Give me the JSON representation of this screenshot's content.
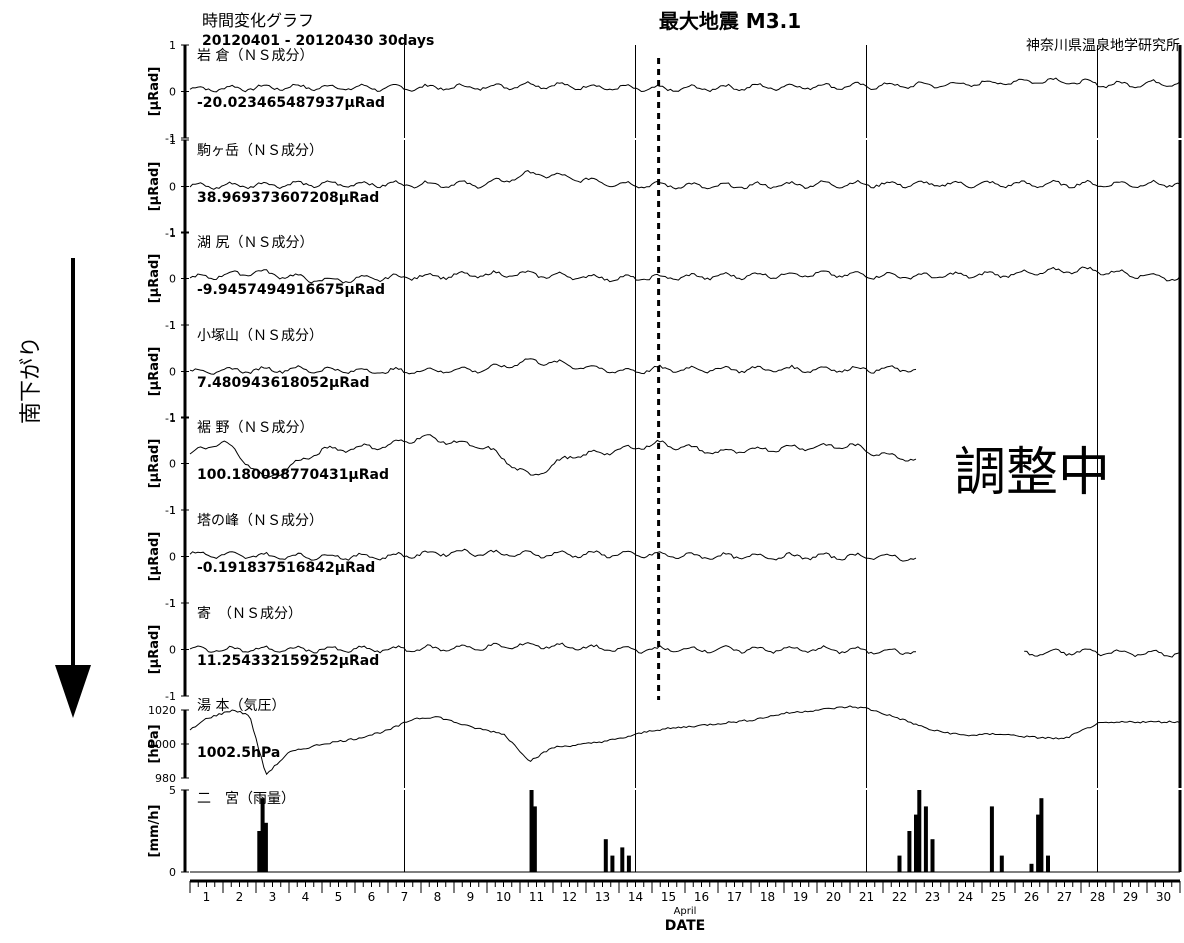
{
  "header": {
    "graph_title": "時間変化グラフ",
    "period": "20120401 - 20120430 30days",
    "max_quake": "最大地震 M3.1",
    "institute": "神奈川県温泉地学研究所"
  },
  "side_label": "南下がり",
  "overlay_text": "調整中",
  "chart_data": {
    "type": "line",
    "x_axis": {
      "label": "DATE",
      "month": "April",
      "ticks": [
        "1",
        "2",
        "3",
        "4",
        "5",
        "6",
        "7",
        "8",
        "9",
        "10",
        "11",
        "12",
        "13",
        "14",
        "15",
        "16",
        "17",
        "18",
        "19",
        "20",
        "21",
        "22",
        "23",
        "24",
        "25",
        "26",
        "27",
        "28",
        "29",
        "30"
      ],
      "range_days": [
        1,
        31
      ],
      "major_divider_days": [
        7.5,
        14.5,
        21.5,
        28.5
      ]
    },
    "earthquake_marker_day": 15.2,
    "panels": [
      {
        "name": "岩 倉（ＮＳ成分）",
        "unit_label": "[μRad]",
        "offset_text": "-20.023465487937μRad",
        "ylim": [
          -1,
          1
        ],
        "ticks": [
          "1",
          "0",
          "-1"
        ],
        "data_end_day": 31,
        "series": {
          "name": "岩 倉（ＮＳ成分）",
          "x": [
            1,
            4,
            7,
            10,
            11.4,
            14,
            15.2,
            18,
            21,
            24,
            27,
            29,
            31
          ],
          "y": [
            0.05,
            0.1,
            0.08,
            0.1,
            0.15,
            0.08,
            0.05,
            0.1,
            0.12,
            0.15,
            0.25,
            0.15,
            0.2
          ]
        }
      },
      {
        "name": "駒ヶ岳（ＮＳ成分）",
        "unit_label": "[μRad]",
        "offset_text": "38.969373607208μRad",
        "ylim": [
          -1,
          1
        ],
        "ticks": [
          "1",
          "0",
          "-1"
        ],
        "data_end_day": 31,
        "series": {
          "name": "駒ヶ岳（ＮＳ成分）",
          "x": [
            1,
            4,
            7,
            10,
            11.4,
            14,
            17,
            20,
            23,
            26,
            28,
            31
          ],
          "y": [
            0.0,
            0.05,
            0.05,
            0.05,
            0.3,
            0.05,
            0.0,
            0.05,
            0.05,
            0.05,
            0.05,
            0.05
          ]
        }
      },
      {
        "name": "湖 尻（ＮＳ成分）",
        "unit_label": "[μRad]",
        "offset_text": "-9.9457494916675μRad",
        "ylim": [
          -1,
          1
        ],
        "ticks": [
          "1",
          "0",
          "-1"
        ],
        "data_end_day": 31,
        "series": {
          "name": "湖 尻（ＮＳ成分）",
          "x": [
            1,
            3,
            5,
            8,
            11,
            14,
            17,
            20,
            23,
            26,
            28,
            31
          ],
          "y": [
            0.0,
            0.15,
            -0.05,
            0.05,
            0.1,
            0.0,
            0.05,
            0.1,
            0.05,
            0.1,
            0.2,
            0.0
          ]
        }
      },
      {
        "name": "小塚山（ＮＳ成分）",
        "unit_label": "[μRad]",
        "offset_text": "7.480943618052μRad",
        "ylim": [
          -1,
          1
        ],
        "ticks": [
          "1",
          "0",
          "-1"
        ],
        "data_end_day": 23.0,
        "series": {
          "name": "小塚山（ＮＳ成分）",
          "x": [
            1,
            4,
            7,
            10,
            11.4,
            14,
            15.2,
            18,
            21,
            23
          ],
          "y": [
            0.0,
            0.05,
            0.0,
            0.05,
            0.25,
            0.0,
            0.05,
            0.05,
            0.05,
            0.05
          ]
        }
      },
      {
        "name": "裾 野（ＮＳ成分）",
        "unit_label": "[μRad]",
        "offset_text": "100.180098770431μRad",
        "ylim": [
          -1,
          1
        ],
        "ticks": [
          "1",
          "0",
          "-1"
        ],
        "data_end_day": 23.0,
        "series": {
          "name": "裾 野（ＮＳ成分）",
          "x": [
            1,
            2,
            3.3,
            5,
            7,
            8,
            10,
            11.3,
            12.5,
            14,
            15.2,
            17,
            19,
            21,
            22,
            23
          ],
          "y": [
            0.2,
            0.5,
            -0.35,
            0.3,
            0.4,
            0.6,
            0.35,
            -0.3,
            0.15,
            0.3,
            0.45,
            0.25,
            0.35,
            0.4,
            0.2,
            0.1
          ]
        }
      },
      {
        "name": "塔の峰（ＮＳ成分）",
        "unit_label": "[μRad]",
        "offset_text": "-0.191837516842μRad",
        "ylim": [
          -1,
          1
        ],
        "ticks": [
          "1",
          "0",
          "-1"
        ],
        "data_end_day": 23.0,
        "series": {
          "name": "塔の峰（ＮＳ成分）",
          "x": [
            1,
            4,
            7,
            9,
            11,
            14,
            17,
            20,
            22,
            23
          ],
          "y": [
            0.05,
            0.0,
            0.0,
            0.1,
            0.05,
            0.05,
            0.0,
            0.0,
            0.0,
            -0.05
          ]
        }
      },
      {
        "name": "寄　（ＮＳ成分）",
        "unit_label": "[μRad]",
        "offset_text": "11.254332159252μRad",
        "ylim": [
          -1,
          1
        ],
        "ticks": [
          "1",
          "0",
          "-1"
        ],
        "data_end_day": 31,
        "gap_days": [
          23.0,
          26.2
        ],
        "series": {
          "name": "寄　（ＮＳ成分）",
          "x": [
            1,
            4,
            7,
            10,
            11.4,
            14,
            17,
            20,
            23,
            26.2,
            28,
            31
          ],
          "y": [
            0.0,
            0.0,
            0.0,
            0.05,
            0.1,
            0.0,
            0.0,
            0.0,
            -0.05,
            -0.1,
            -0.05,
            -0.1
          ]
        }
      }
    ],
    "pressure_panel": {
      "name": "湯 本（気圧）",
      "unit_label": "[hPa]",
      "value_text": "1002.5hPa",
      "ylim": [
        980,
        1025
      ],
      "ticks": [
        "1020",
        "1000",
        "980"
      ],
      "series": {
        "name": "湯 本（気圧）",
        "x": [
          1,
          1.5,
          2.3,
          2.8,
          3.3,
          4,
          5,
          6,
          7,
          7.8,
          8.5,
          9.5,
          10.5,
          11.3,
          12,
          13,
          14,
          15,
          16,
          17,
          18,
          19,
          20,
          21,
          21.5,
          22.5,
          23.5,
          24.5,
          25.5,
          26.5,
          27.5,
          28.5,
          29.5,
          31
        ],
        "y": [
          1008,
          1015,
          1020,
          1017,
          982,
          995,
          1000,
          1003,
          1008,
          1015,
          1016,
          1010,
          1006,
          990,
          998,
          1000,
          1003,
          1008,
          1010,
          1012,
          1014,
          1018,
          1020,
          1022,
          1021,
          1015,
          1008,
          1005,
          1006,
          1004,
          1003,
          1012,
          1013,
          1013
        ]
      }
    },
    "rain_panel": {
      "name": "二　宮（雨量）",
      "unit_label": "[mm/h]",
      "ylim": [
        0,
        5
      ],
      "ticks": [
        "5",
        "0"
      ],
      "type": "bar",
      "bars": [
        {
          "day": 3.1,
          "value": 2.5
        },
        {
          "day": 3.2,
          "value": 4.5
        },
        {
          "day": 3.3,
          "value": 3.0
        },
        {
          "day": 11.35,
          "value": 5.0
        },
        {
          "day": 11.45,
          "value": 4.0
        },
        {
          "day": 13.6,
          "value": 2.0
        },
        {
          "day": 13.8,
          "value": 1.0
        },
        {
          "day": 14.1,
          "value": 1.5
        },
        {
          "day": 14.3,
          "value": 1.0
        },
        {
          "day": 22.5,
          "value": 1.0
        },
        {
          "day": 22.8,
          "value": 2.5
        },
        {
          "day": 23.0,
          "value": 3.5
        },
        {
          "day": 23.1,
          "value": 5.0
        },
        {
          "day": 23.3,
          "value": 4.0
        },
        {
          "day": 23.5,
          "value": 2.0
        },
        {
          "day": 25.3,
          "value": 4.0
        },
        {
          "day": 25.6,
          "value": 1.0
        },
        {
          "day": 26.5,
          "value": 0.5
        },
        {
          "day": 26.7,
          "value": 3.5
        },
        {
          "day": 26.8,
          "value": 4.5
        },
        {
          "day": 27.0,
          "value": 1.0
        }
      ]
    }
  }
}
